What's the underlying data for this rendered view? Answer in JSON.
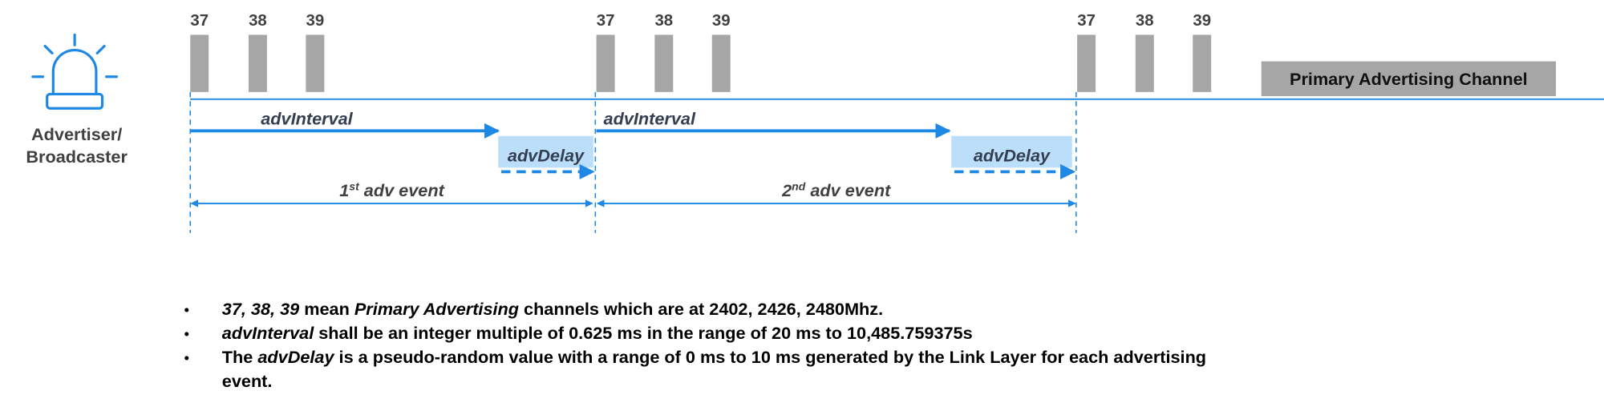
{
  "advertiser_label": [
    "Advertiser/",
    "Broadcaster"
  ],
  "channel_groups": [
    [
      "37",
      "38",
      "39"
    ],
    [
      "37",
      "38",
      "39"
    ],
    [
      "37",
      "38",
      "39"
    ]
  ],
  "primary_channel_label": "Primary Advertising Channel",
  "intervals": [
    {
      "interval_label": "advInterval",
      "delay_label": "advDelay",
      "event": {
        "number": "1",
        "suffix": "st",
        "text": " adv event"
      }
    },
    {
      "interval_label": "advInterval",
      "delay_label": "advDelay",
      "event": {
        "number": "2",
        "suffix": "nd",
        "text": " adv event"
      }
    }
  ],
  "bullets": [
    {
      "lines": [
        [
          {
            "text": "37, 38, 39",
            "italic": true
          },
          {
            "text": " mean "
          },
          {
            "text": "Primary Advertising",
            "italic": true
          },
          {
            "text": " channels which are at 2402, 2426, 2480Mhz."
          }
        ]
      ]
    },
    {
      "lines": [
        [
          {
            "text": "advInterval",
            "italic": true
          },
          {
            "text": " shall be an integer multiple of 0.625 ms in the range of 20 ms to 10,485.759375s"
          }
        ]
      ]
    },
    {
      "lines": [
        [
          {
            "text": "The "
          },
          {
            "text": "advDelay",
            "italic": true
          },
          {
            "text": " is a pseudo-random value with a range of 0 ms to 10 ms generated by the Link Layer for each advertising"
          }
        ],
        [
          {
            "text": "event."
          }
        ]
      ]
    }
  ]
}
